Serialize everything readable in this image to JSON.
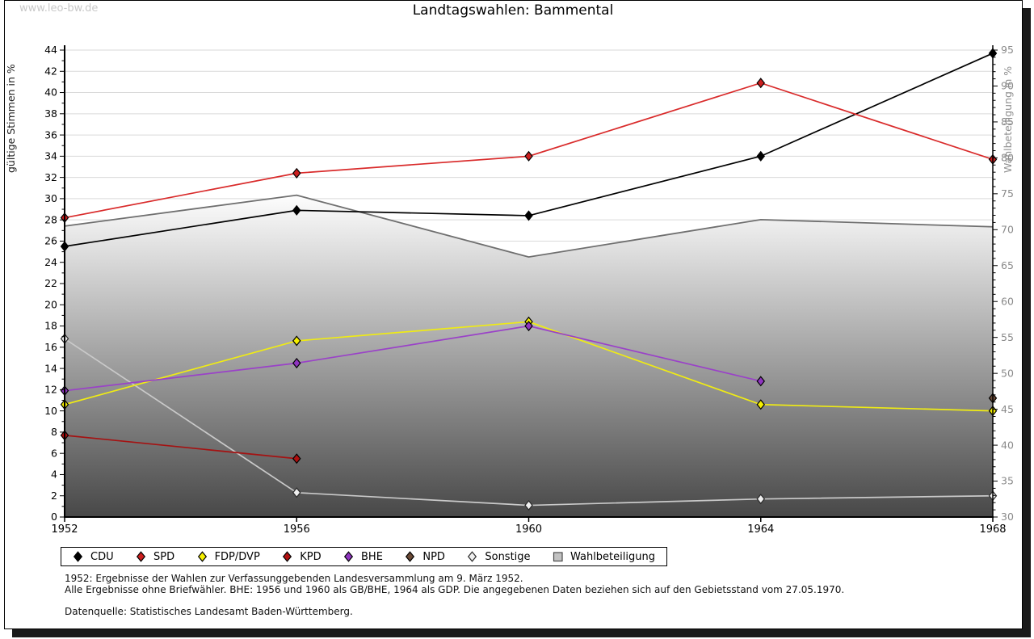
{
  "watermark": "www.leo-bw.de",
  "title": "Landtagswahlen: Bammental",
  "chart_data": {
    "type": "line",
    "x": [
      1952,
      1956,
      1960,
      1964,
      1968
    ],
    "x_range": [
      1952,
      1968
    ],
    "grid": "horizontal",
    "left_axis": {
      "label": "gültige Stimmen in %",
      "min": 0,
      "max": 44,
      "tick_step": 2,
      "minor_step": 1
    },
    "right_axis": {
      "label": "Wahlbeteiligung in %",
      "min": 30,
      "max": 95,
      "tick_step": 5,
      "minor_step": 1
    },
    "series": [
      {
        "name": "CDU",
        "axis": "left",
        "marker": "diamond",
        "line_color": "#000000",
        "fill_color": "#000000",
        "points": [
          [
            1952,
            25.5
          ],
          [
            1956,
            28.9
          ],
          [
            1960,
            28.4
          ],
          [
            1964,
            34.0
          ],
          [
            1968,
            43.7
          ]
        ]
      },
      {
        "name": "SPD",
        "axis": "left",
        "marker": "diamond",
        "line_color": "#d92b2b",
        "fill_color": "#cc1f1f",
        "points": [
          [
            1952,
            28.2
          ],
          [
            1956,
            32.4
          ],
          [
            1960,
            34.0
          ],
          [
            1964,
            40.9
          ],
          [
            1968,
            33.7
          ]
        ]
      },
      {
        "name": "FDP/DVP",
        "axis": "left",
        "marker": "diamond",
        "line_color": "#efeb14",
        "fill_color": "#f5ef00",
        "points": [
          [
            1952,
            10.6
          ],
          [
            1956,
            16.6
          ],
          [
            1960,
            18.4
          ],
          [
            1964,
            10.6
          ],
          [
            1968,
            10.0
          ]
        ]
      },
      {
        "name": "KPD",
        "axis": "left",
        "marker": "diamond",
        "line_color": "#a51212",
        "fill_color": "#b00f0f",
        "points": [
          [
            1952,
            7.7
          ],
          [
            1956,
            5.5
          ]
        ]
      },
      {
        "name": "BHE",
        "axis": "left",
        "marker": "diamond",
        "line_color": "#9a42c8",
        "fill_color": "#8f35c0",
        "points": [
          [
            1952,
            11.9
          ],
          [
            1956,
            14.5
          ],
          [
            1960,
            18.0
          ],
          [
            1964,
            12.8
          ]
        ]
      },
      {
        "name": "NPD",
        "axis": "left",
        "marker": "diamond",
        "line_color": "#6b4a36",
        "fill_color": "#6b4a36",
        "points": [
          [
            1968,
            11.2
          ]
        ]
      },
      {
        "name": "Sonstige",
        "axis": "left",
        "marker": "diamond",
        "line_color": "#c9c9c9",
        "fill_color": "#efefef",
        "points": [
          [
            1952,
            16.8
          ],
          [
            1956,
            2.3
          ],
          [
            1960,
            1.1
          ],
          [
            1964,
            1.7
          ],
          [
            1968,
            2.0
          ]
        ]
      },
      {
        "name": "Wahlbeteiligung",
        "axis": "right",
        "marker": "none",
        "line_color": "#6f6f6f",
        "fill_color": "#c2c2c2",
        "area": true,
        "points": [
          [
            1952,
            70.5
          ],
          [
            1956,
            74.8
          ],
          [
            1960,
            66.2
          ],
          [
            1964,
            71.4
          ],
          [
            1968,
            70.4
          ]
        ]
      }
    ],
    "draw_order": [
      "Wahlbeteiligung",
      "Sonstige",
      "KPD",
      "FDP/DVP",
      "BHE",
      "NPD",
      "CDU",
      "SPD"
    ]
  },
  "legend": {
    "items": [
      {
        "label": "CDU",
        "shape": "diamond",
        "color": "#000000"
      },
      {
        "label": "SPD",
        "shape": "diamond",
        "color": "#cc1f1f"
      },
      {
        "label": "FDP/DVP",
        "shape": "diamond",
        "color": "#f5ef00"
      },
      {
        "label": "KPD",
        "shape": "diamond",
        "color": "#b00f0f"
      },
      {
        "label": "BHE",
        "shape": "diamond",
        "color": "#8f35c0"
      },
      {
        "label": "NPD",
        "shape": "diamond",
        "color": "#6b4a36"
      },
      {
        "label": "Sonstige",
        "shape": "diamond",
        "color": "#efefef"
      },
      {
        "label": "Wahlbeteiligung",
        "shape": "square",
        "color": "#c2c2c2"
      }
    ]
  },
  "footnotes": {
    "lines": [
      "1952: Ergebnisse der Wahlen zur Verfassunggebenden Landesversammlung am 9. März 1952.",
      "Alle Ergebnisse ohne Briefwähler. BHE: 1956 und 1960 als GB/BHE, 1964 als GDP. Die angegebenen Daten beziehen sich auf den Gebietsstand vom 27.05.1970.",
      "",
      "Datenquelle: Statistisches Landesamt Baden-Württemberg."
    ]
  }
}
